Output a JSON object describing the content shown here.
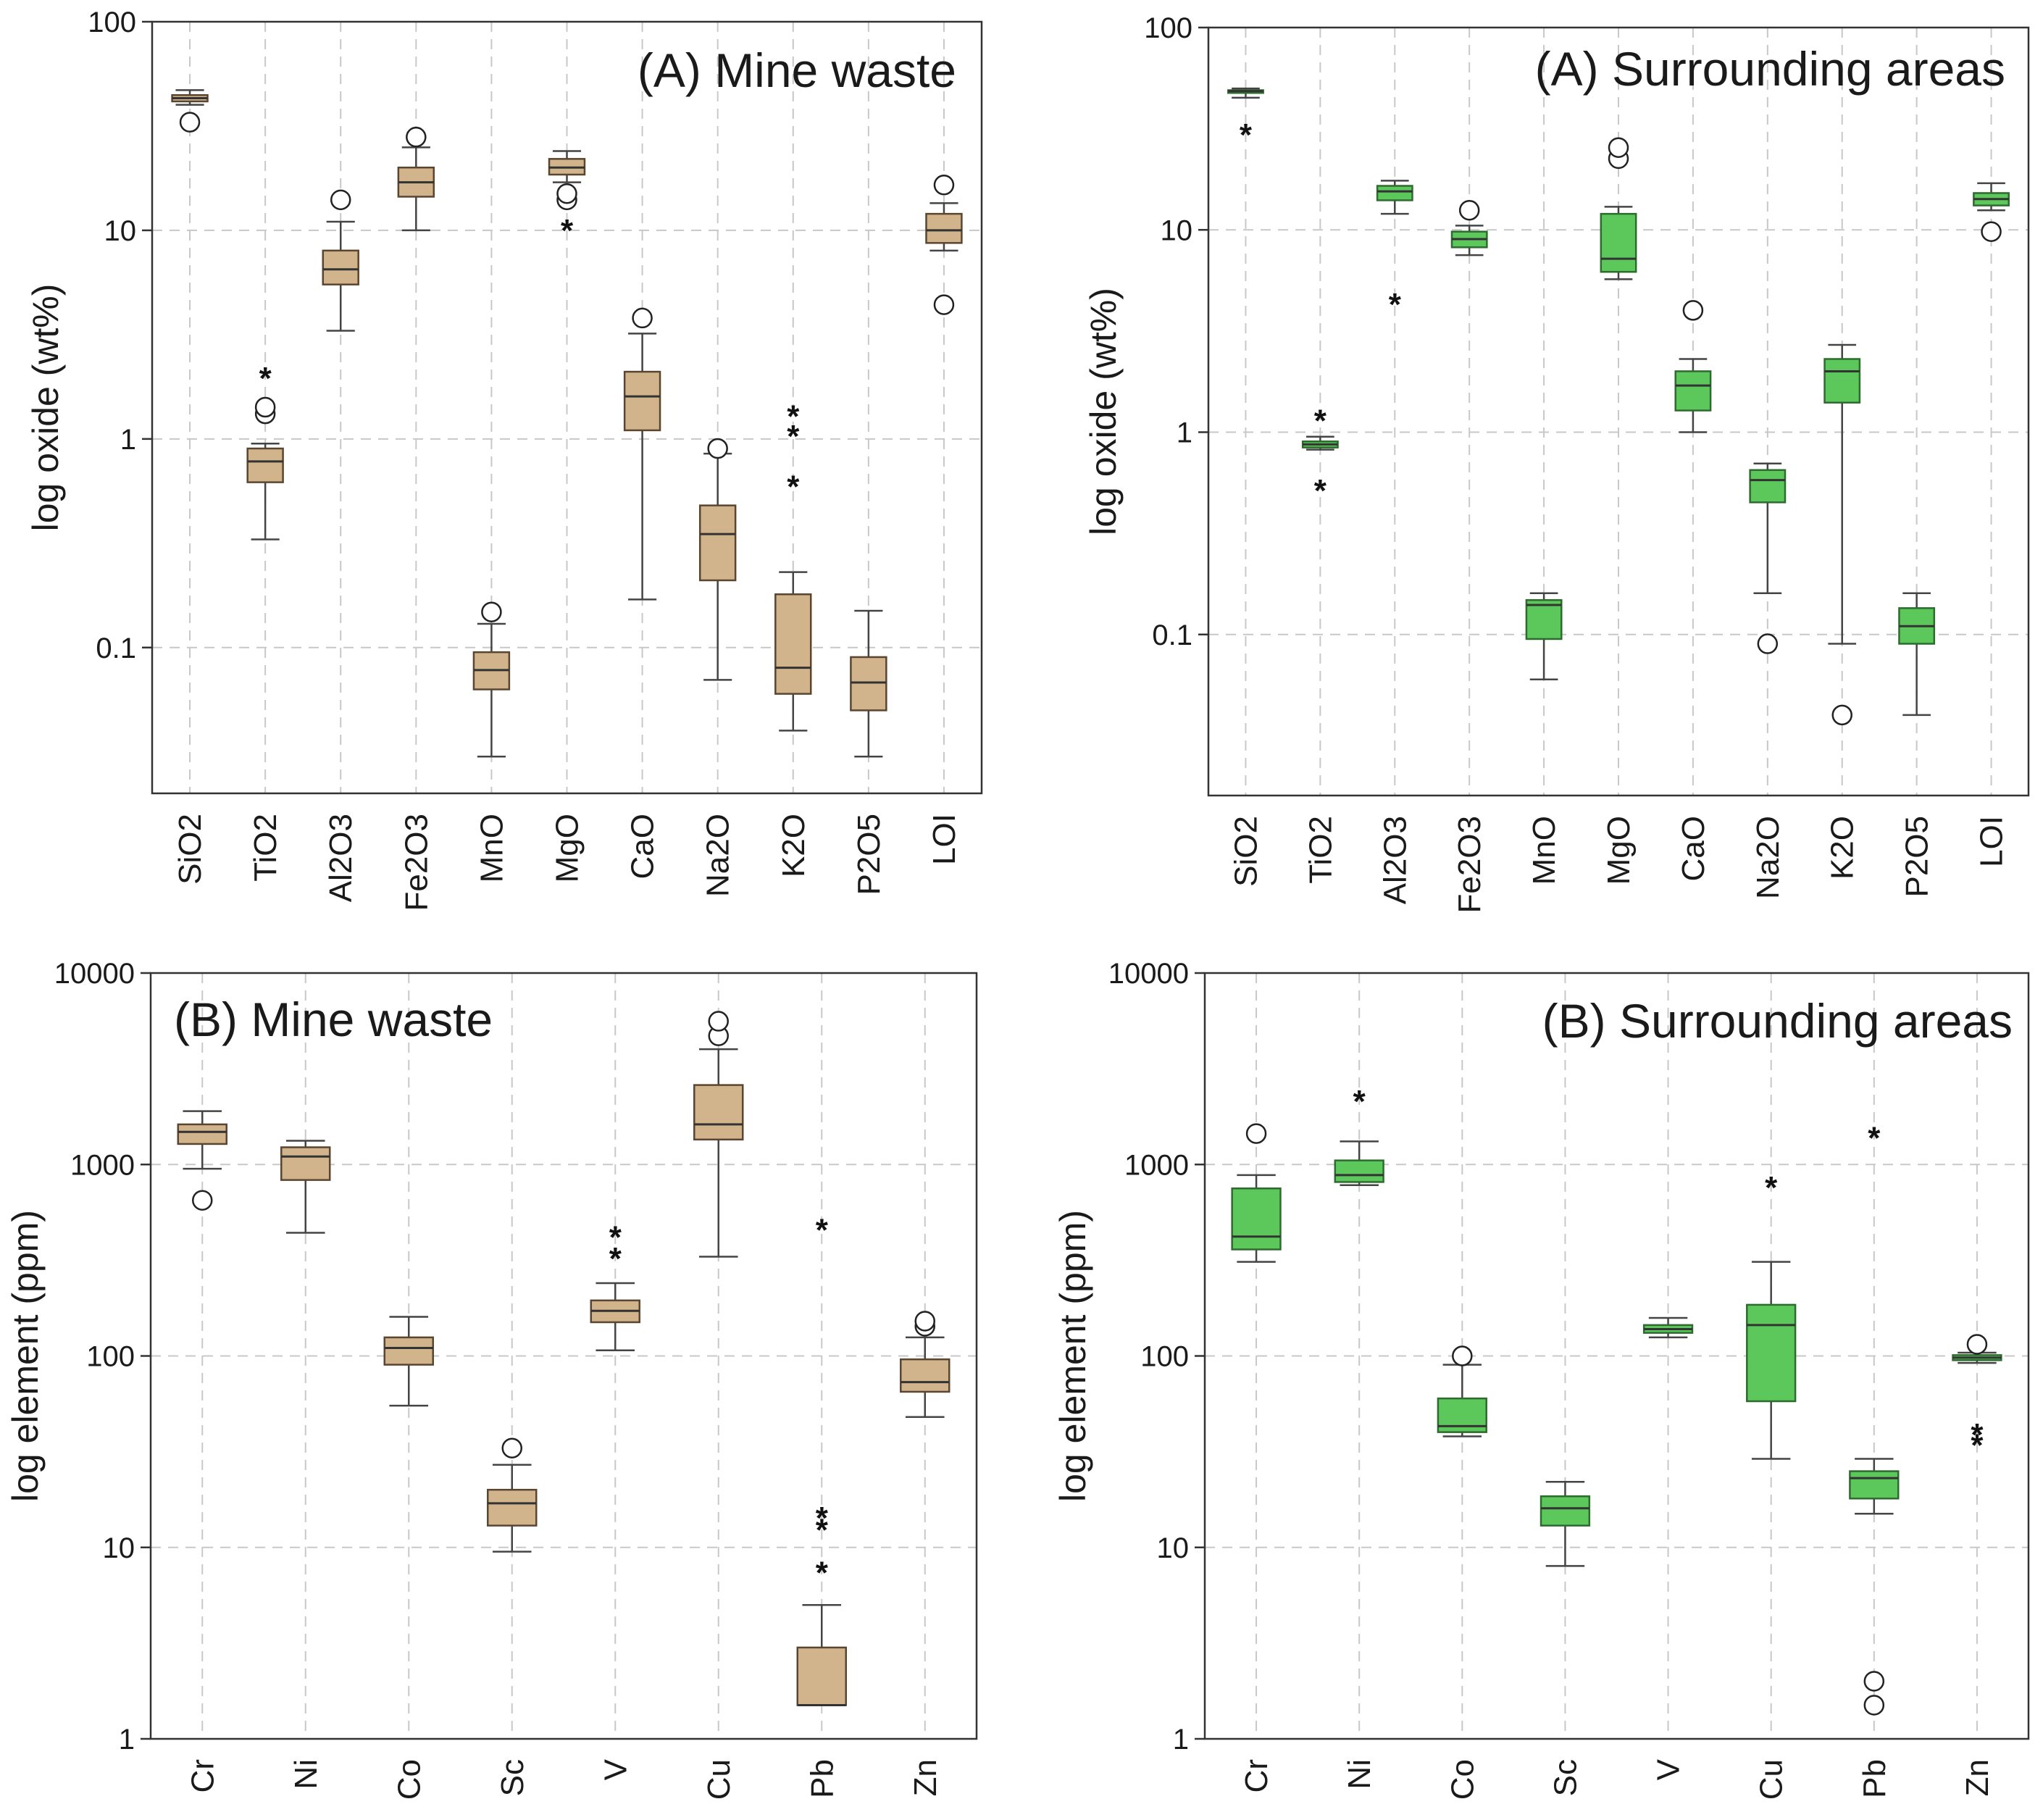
{
  "chart_data": [
    {
      "type": "box",
      "title": "(A) Mine waste",
      "ylabel": "log oxide (wt%)",
      "yscale": "log",
      "ylim": [
        0.02,
        100
      ],
      "yticks": [
        0.1,
        1,
        10,
        100
      ],
      "ytick_labels": [
        "0.1",
        "1",
        "10",
        "100"
      ],
      "box_color": "#d2b48c",
      "box_edge": "#5a4630",
      "title_position": "top-right",
      "categories": [
        "SiO2",
        "TiO2",
        "Al2O3",
        "Fe2O3",
        "MnO",
        "MgO",
        "CaO",
        "Na2O",
        "K2O",
        "P2O5",
        "LOI"
      ],
      "boxes": [
        {
          "min": 40,
          "q1": 41.5,
          "median": 43,
          "q3": 44.5,
          "max": 47,
          "outliers": [
            33
          ],
          "extremes": []
        },
        {
          "min": 0.33,
          "q1": 0.62,
          "median": 0.78,
          "q3": 0.9,
          "max": 0.95,
          "outliers": [
            1.32,
            1.42
          ],
          "extremes": [
            2.05
          ]
        },
        {
          "min": 3.3,
          "q1": 5.5,
          "median": 6.5,
          "q3": 8,
          "max": 11,
          "outliers": [
            14
          ],
          "extremes": []
        },
        {
          "min": 10,
          "q1": 14.5,
          "median": 17,
          "q3": 20,
          "max": 25,
          "outliers": [
            28
          ],
          "extremes": []
        },
        {
          "min": 0.03,
          "q1": 0.063,
          "median": 0.078,
          "q3": 0.095,
          "max": 0.13,
          "outliers": [
            0.148
          ],
          "extremes": []
        },
        {
          "min": 17,
          "q1": 18.5,
          "median": 20,
          "q3": 22,
          "max": 24,
          "outliers": [
            14,
            15
          ],
          "extremes": [
            10.5
          ]
        },
        {
          "min": 0.17,
          "q1": 1.1,
          "median": 1.6,
          "q3": 2.1,
          "max": 3.2,
          "outliers": [
            3.8
          ],
          "extremes": []
        },
        {
          "min": 0.07,
          "q1": 0.21,
          "median": 0.35,
          "q3": 0.48,
          "max": 0.85,
          "outliers": [
            0.9
          ],
          "extremes": []
        },
        {
          "min": 0.04,
          "q1": 0.06,
          "median": 0.08,
          "q3": 0.18,
          "max": 0.23,
          "outliers": [],
          "extremes": [
            0.62,
            1.08,
            1.35
          ]
        },
        {
          "min": 0.03,
          "q1": 0.05,
          "median": 0.068,
          "q3": 0.09,
          "max": 0.15,
          "outliers": [],
          "extremes": []
        },
        {
          "min": 8,
          "q1": 8.7,
          "median": 10,
          "q3": 12,
          "max": 13.5,
          "outliers": [
            4.4,
            16.5
          ],
          "extremes": []
        }
      ]
    },
    {
      "type": "box",
      "title": "(A) Surrounding areas",
      "ylabel": "log oxide (wt%)",
      "yscale": "log",
      "ylim": [
        0.016,
        100
      ],
      "yticks": [
        0.1,
        1,
        10,
        100
      ],
      "ytick_labels": [
        "0.1",
        "1",
        "10",
        "100"
      ],
      "box_color": "#5cc85c",
      "box_edge": "#2e6b2e",
      "title_position": "top-right",
      "categories": [
        "SiO2",
        "TiO2",
        "Al2O3",
        "Fe2O3",
        "MnO",
        "MgO",
        "CaO",
        "Na2O",
        "K2O",
        "P2O5",
        "LOI"
      ],
      "boxes": [
        {
          "min": 45,
          "q1": 47.5,
          "median": 48.5,
          "q3": 49,
          "max": 50,
          "outliers": [],
          "extremes": [
            31
          ]
        },
        {
          "min": 0.82,
          "q1": 0.84,
          "median": 0.87,
          "q3": 0.9,
          "max": 0.95,
          "outliers": [],
          "extremes": [
            0.54,
            1.2
          ]
        },
        {
          "min": 12,
          "q1": 14,
          "median": 15.5,
          "q3": 16.5,
          "max": 17.5,
          "outliers": [],
          "extremes": [
            4.5
          ]
        },
        {
          "min": 7.5,
          "q1": 8.2,
          "median": 9,
          "q3": 9.8,
          "max": 10.5,
          "outliers": [
            12.5
          ],
          "extremes": []
        },
        {
          "min": 0.06,
          "q1": 0.095,
          "median": 0.14,
          "q3": 0.148,
          "max": 0.16,
          "outliers": [],
          "extremes": []
        },
        {
          "min": 5.7,
          "q1": 6.2,
          "median": 7.2,
          "q3": 12,
          "max": 13,
          "outliers": [
            22.5,
            25.5
          ],
          "extremes": []
        },
        {
          "min": 1,
          "q1": 1.28,
          "median": 1.7,
          "q3": 2,
          "max": 2.3,
          "outliers": [
            4
          ],
          "extremes": []
        },
        {
          "min": 0.16,
          "q1": 0.45,
          "median": 0.58,
          "q3": 0.65,
          "max": 0.7,
          "outliers": [
            0.09
          ],
          "extremes": []
        },
        {
          "min": 0.09,
          "q1": 1.4,
          "median": 2,
          "q3": 2.3,
          "max": 2.7,
          "outliers": [
            0.04
          ],
          "extremes": []
        },
        {
          "min": 0.04,
          "q1": 0.09,
          "median": 0.11,
          "q3": 0.135,
          "max": 0.16,
          "outliers": [],
          "extremes": []
        },
        {
          "min": 12.5,
          "q1": 13.2,
          "median": 14.2,
          "q3": 15.2,
          "max": 17,
          "outliers": [
            9.8
          ],
          "extremes": []
        }
      ]
    },
    {
      "type": "box",
      "title": "(B) Mine waste",
      "ylabel": "log element (ppm)",
      "yscale": "log",
      "ylim": [
        1,
        10000
      ],
      "yticks": [
        1,
        10,
        100,
        1000,
        10000
      ],
      "ytick_labels": [
        "1",
        "10",
        "100",
        "1000",
        "10000"
      ],
      "box_color": "#d2b48c",
      "box_edge": "#5a4630",
      "title_position": "top-left",
      "categories": [
        "Cr",
        "Ni",
        "Co",
        "Sc",
        "V",
        "Cu",
        "Pb",
        "Zn"
      ],
      "boxes": [
        {
          "min": 950,
          "q1": 1280,
          "median": 1480,
          "q3": 1620,
          "max": 1900,
          "outliers": [
            650
          ],
          "extremes": []
        },
        {
          "min": 440,
          "q1": 830,
          "median": 1100,
          "q3": 1230,
          "max": 1330,
          "outliers": [],
          "extremes": []
        },
        {
          "min": 55,
          "q1": 90,
          "median": 110,
          "q3": 125,
          "max": 160,
          "outliers": [],
          "extremes": []
        },
        {
          "min": 9.5,
          "q1": 13,
          "median": 17,
          "q3": 20,
          "max": 27,
          "outliers": [
            33
          ],
          "extremes": []
        },
        {
          "min": 107,
          "q1": 150,
          "median": 172,
          "q3": 195,
          "max": 240,
          "outliers": [],
          "extremes": [
            340,
            440
          ]
        },
        {
          "min": 330,
          "q1": 1350,
          "median": 1620,
          "q3": 2600,
          "max": 4000,
          "outliers": [
            4700,
            5600
          ],
          "extremes": []
        },
        {
          "min": 1.5,
          "q1": 1.5,
          "median": 1.5,
          "q3": 3,
          "max": 5,
          "outliers": [],
          "extremes": [
            7.8,
            13,
            15,
            480
          ]
        },
        {
          "min": 48,
          "q1": 65,
          "median": 73,
          "q3": 96,
          "max": 125,
          "outliers": [
            143,
            152
          ],
          "extremes": []
        }
      ]
    },
    {
      "type": "box",
      "title": "(B) Surrounding areas",
      "ylabel": "log element (ppm)",
      "yscale": "log",
      "ylim": [
        1,
        10000
      ],
      "yticks": [
        1,
        10,
        100,
        1000,
        10000
      ],
      "ytick_labels": [
        "1",
        "10",
        "100",
        "1000",
        "10000"
      ],
      "box_color": "#5cc85c",
      "box_edge": "#2e6b2e",
      "title_position": "top-right",
      "categories": [
        "Cr",
        "Ni",
        "Co",
        "Sc",
        "V",
        "Cu",
        "Pb",
        "Zn"
      ],
      "boxes": [
        {
          "min": 310,
          "q1": 360,
          "median": 420,
          "q3": 750,
          "max": 880,
          "outliers": [
            1450
          ],
          "extremes": []
        },
        {
          "min": 780,
          "q1": 810,
          "median": 880,
          "q3": 1050,
          "max": 1320,
          "outliers": [],
          "extremes": [
            2250
          ]
        },
        {
          "min": 38,
          "q1": 40,
          "median": 43,
          "q3": 60,
          "max": 90,
          "outliers": [
            100
          ],
          "extremes": []
        },
        {
          "min": 8,
          "q1": 13,
          "median": 16,
          "q3": 18.5,
          "max": 22,
          "outliers": [],
          "extremes": []
        },
        {
          "min": 125,
          "q1": 132,
          "median": 138,
          "q3": 145,
          "max": 158,
          "outliers": [],
          "extremes": []
        },
        {
          "min": 29,
          "q1": 58,
          "median": 145,
          "q3": 185,
          "max": 310,
          "outliers": [],
          "extremes": [
            800
          ]
        },
        {
          "min": 15,
          "q1": 18,
          "median": 23,
          "q3": 25,
          "max": 29,
          "outliers": [
            1.5,
            2
          ],
          "extremes": [
            1450
          ]
        },
        {
          "min": 92,
          "q1": 95,
          "median": 98,
          "q3": 101,
          "max": 104,
          "outliers": [
            115
          ],
          "extremes": [
            36,
            41
          ]
        }
      ]
    }
  ]
}
